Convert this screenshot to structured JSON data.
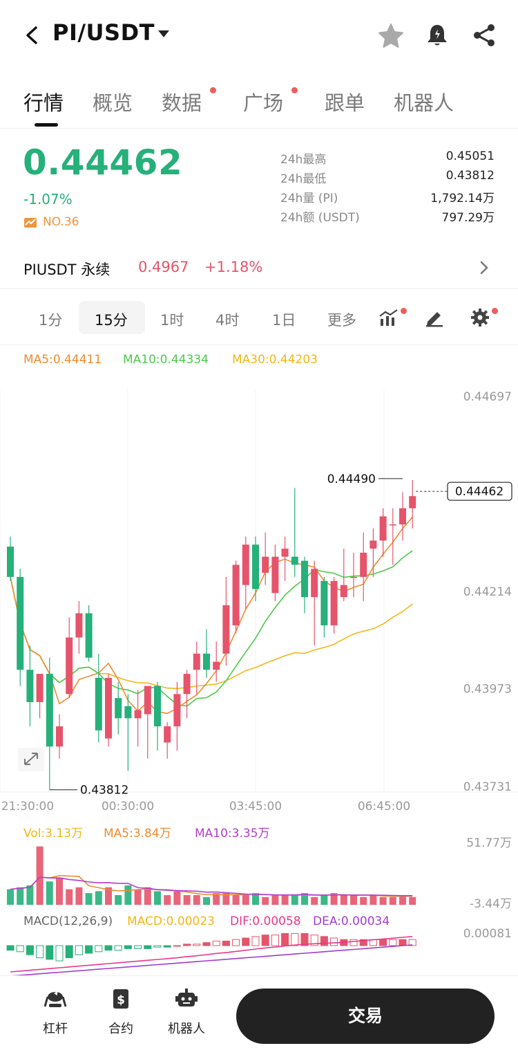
{
  "header": {
    "pair": "PI/USDT"
  },
  "tabs": [
    {
      "label": "行情",
      "active": true
    },
    {
      "label": "概览"
    },
    {
      "label": "数据",
      "dot": true
    },
    {
      "label": "广场",
      "dot": true
    },
    {
      "label": "跟单"
    },
    {
      "label": "机器人"
    }
  ],
  "ticker": {
    "last_price": "0.44462",
    "change_pct": "-1.07%",
    "rank": "NO.36",
    "stats": [
      {
        "label": "24h最高",
        "value": "0.45051"
      },
      {
        "label": "24h最低",
        "value": "0.43812"
      },
      {
        "label": "24h量 (PI)",
        "value": "1,792.14万"
      },
      {
        "label": "24h额 (USDT)",
        "value": "797.29万"
      }
    ]
  },
  "perpetual": {
    "label": "PIUSDT 永续",
    "price": "0.4967",
    "change": "+1.18%"
  },
  "intervals": [
    {
      "label": "1分"
    },
    {
      "label": "15分",
      "active": true
    },
    {
      "label": "1时"
    },
    {
      "label": "4时"
    },
    {
      "label": "1日"
    },
    {
      "label": "更多"
    }
  ],
  "ma_legend": {
    "ma5": "MA5:0.44411",
    "ma10": "MA10:0.44334",
    "ma30": "MA30:0.44203"
  },
  "colors": {
    "up": "#e5546a",
    "down": "#26b07a",
    "ma5": "#f08a2e",
    "ma10": "#4cc94c",
    "ma30": "#f2b617",
    "vol_ma10": "#b23ccf",
    "macd_dif": "#e8378a",
    "macd_dea": "#a03ccf"
  },
  "chart_data": {
    "type": "candlestick",
    "y_ticks": [
      "0.44697",
      "0.44214",
      "0.43973",
      "0.43731"
    ],
    "ylim": [
      0.43731,
      0.44697
    ],
    "x_ticks": [
      "21:30:00",
      "00:30:00",
      "03:45:00",
      "06:45:00"
    ],
    "current_price_label": "0.44462",
    "high_marker": "0.44490",
    "low_marker": "0.43812",
    "candles": [
      {
        "o": 0.44325,
        "h": 0.4435,
        "l": 0.4424,
        "c": 0.4425
      },
      {
        "o": 0.4425,
        "h": 0.4427,
        "l": 0.4398,
        "c": 0.4402
      },
      {
        "o": 0.4402,
        "h": 0.4408,
        "l": 0.4388,
        "c": 0.4394
      },
      {
        "o": 0.4394,
        "h": 0.4401,
        "l": 0.439,
        "c": 0.4401
      },
      {
        "o": 0.4401,
        "h": 0.4405,
        "l": 0.43812,
        "c": 0.4383
      },
      {
        "o": 0.4383,
        "h": 0.4391,
        "l": 0.438,
        "c": 0.4388
      },
      {
        "o": 0.4396,
        "h": 0.4415,
        "l": 0.4395,
        "c": 0.441
      },
      {
        "o": 0.441,
        "h": 0.4419,
        "l": 0.4406,
        "c": 0.4416
      },
      {
        "o": 0.4416,
        "h": 0.4418,
        "l": 0.4404,
        "c": 0.4405
      },
      {
        "o": 0.44,
        "h": 0.4406,
        "l": 0.4384,
        "c": 0.4387
      },
      {
        "o": 0.4385,
        "h": 0.4401,
        "l": 0.4383,
        "c": 0.44
      },
      {
        "o": 0.4395,
        "h": 0.4399,
        "l": 0.4386,
        "c": 0.439
      },
      {
        "o": 0.4393,
        "h": 0.4396,
        "l": 0.4377,
        "c": 0.439
      },
      {
        "o": 0.439,
        "h": 0.4397,
        "l": 0.4383,
        "c": 0.4392
      },
      {
        "o": 0.4391,
        "h": 0.4398,
        "l": 0.438,
        "c": 0.4398
      },
      {
        "o": 0.4398,
        "h": 0.4399,
        "l": 0.4382,
        "c": 0.4388
      },
      {
        "o": 0.4384,
        "h": 0.4389,
        "l": 0.438,
        "c": 0.4388
      },
      {
        "o": 0.4388,
        "h": 0.4399,
        "l": 0.4382,
        "c": 0.4396
      },
      {
        "o": 0.4396,
        "h": 0.4402,
        "l": 0.439,
        "c": 0.4401
      },
      {
        "o": 0.4402,
        "h": 0.4409,
        "l": 0.4396,
        "c": 0.4406
      },
      {
        "o": 0.4406,
        "h": 0.4412,
        "l": 0.44,
        "c": 0.4402
      },
      {
        "o": 0.4402,
        "h": 0.4409,
        "l": 0.4399,
        "c": 0.4404
      },
      {
        "o": 0.4406,
        "h": 0.4425,
        "l": 0.4403,
        "c": 0.4418
      },
      {
        "o": 0.4413,
        "h": 0.4429,
        "l": 0.4411,
        "c": 0.4428
      },
      {
        "o": 0.4423,
        "h": 0.4435,
        "l": 0.4417,
        "c": 0.4433
      },
      {
        "o": 0.4433,
        "h": 0.4435,
        "l": 0.4419,
        "c": 0.4422
      },
      {
        "o": 0.4426,
        "h": 0.4436,
        "l": 0.4423,
        "c": 0.443
      },
      {
        "o": 0.4421,
        "h": 0.4433,
        "l": 0.4419,
        "c": 0.443
      },
      {
        "o": 0.443,
        "h": 0.4435,
        "l": 0.4424,
        "c": 0.4432
      },
      {
        "o": 0.443,
        "h": 0.4447,
        "l": 0.4425,
        "c": 0.4428
      },
      {
        "o": 0.4429,
        "h": 0.443,
        "l": 0.4416,
        "c": 0.442
      },
      {
        "o": 0.442,
        "h": 0.4429,
        "l": 0.4408,
        "c": 0.4427
      },
      {
        "o": 0.4424,
        "h": 0.4425,
        "l": 0.441,
        "c": 0.4413
      },
      {
        "o": 0.4413,
        "h": 0.4425,
        "l": 0.4411,
        "c": 0.4424
      },
      {
        "o": 0.442,
        "h": 0.4432,
        "l": 0.4419,
        "c": 0.4423
      },
      {
        "o": 0.4425,
        "h": 0.4431,
        "l": 0.442,
        "c": 0.4425
      },
      {
        "o": 0.4425,
        "h": 0.4436,
        "l": 0.4419,
        "c": 0.4431
      },
      {
        "o": 0.4432,
        "h": 0.4437,
        "l": 0.4425,
        "c": 0.4434
      },
      {
        "o": 0.4434,
        "h": 0.4442,
        "l": 0.443,
        "c": 0.444
      },
      {
        "o": 0.4438,
        "h": 0.4442,
        "l": 0.4428,
        "c": 0.4438
      },
      {
        "o": 0.4438,
        "h": 0.4446,
        "l": 0.4434,
        "c": 0.4442
      },
      {
        "o": 0.4442,
        "h": 0.4449,
        "l": 0.4437,
        "c": 0.4445
      }
    ],
    "volume": {
      "legend": {
        "vol": "Vol:3.13万",
        "ma5": "MA5:3.84万",
        "ma10": "MA10:3.35万"
      },
      "y_ticks": [
        "51.77万",
        "-3.44万"
      ],
      "values": [
        8,
        9,
        10,
        30,
        12,
        14,
        8,
        9,
        6,
        7,
        9,
        5,
        10,
        8,
        9,
        7,
        5,
        7,
        5,
        5,
        4,
        6,
        6,
        5,
        5,
        6,
        4,
        5,
        5,
        5,
        6,
        4,
        5,
        6,
        5,
        5,
        4,
        5,
        4,
        4,
        5,
        4
      ]
    },
    "macd": {
      "legend": {
        "title": "MACD(12,26,9)",
        "macd": "MACD:0.00023",
        "dif": "DIF:0.00058",
        "dea": "DEA:0.00034"
      },
      "y_ticks": [
        "0.00081"
      ],
      "hist": [
        -3,
        -4,
        -6,
        -8,
        -9,
        -10,
        -8,
        -6,
        -5,
        -4,
        -3,
        -3,
        -2,
        -2,
        -2,
        -1,
        -1,
        0,
        1,
        1,
        2,
        3,
        3,
        4,
        5,
        6,
        7,
        7,
        8,
        8,
        8,
        7,
        6,
        5,
        4,
        4,
        4,
        4,
        4,
        4,
        4,
        4
      ]
    }
  },
  "bottom_bar": {
    "items": [
      {
        "label": "杠杆"
      },
      {
        "label": "合约"
      },
      {
        "label": "机器人"
      }
    ],
    "trade_label": "交易"
  }
}
